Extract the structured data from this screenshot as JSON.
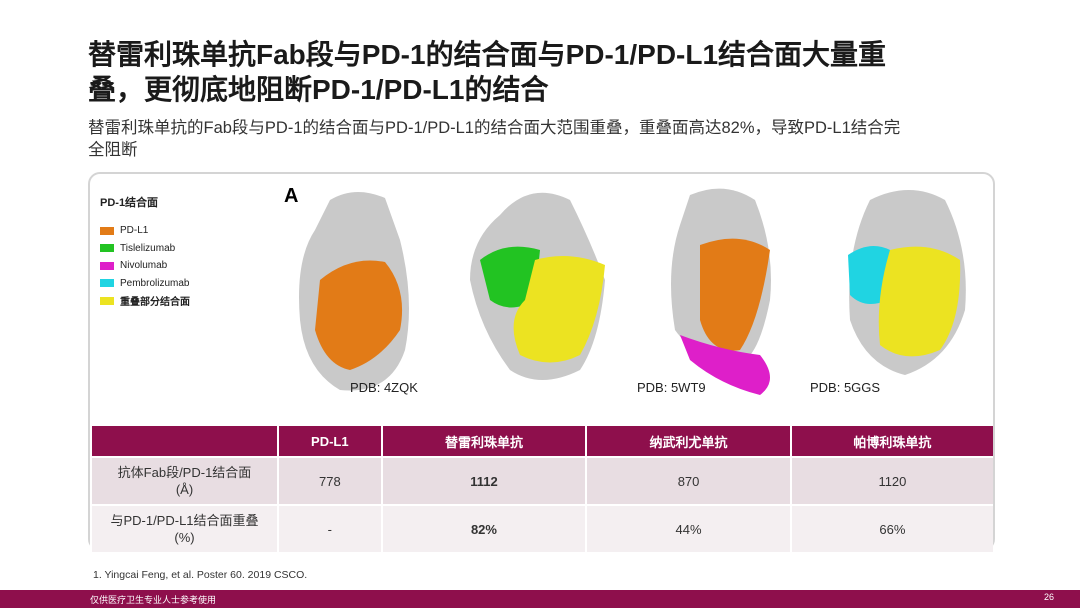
{
  "header": {
    "title": [
      "替雷利珠单抗Fab段与PD-1的结合面与PD-1/PD-L1结合面大量重",
      "叠，更彻底地阻断PD-1/PD-L1的结合"
    ],
    "subtitle": [
      "替雷利珠单抗的Fab段与PD-1的结合面与PD-1/PD-L1的结合面大范围重叠，重叠面高达82%，导致PD-L1结合完",
      "全阻断"
    ]
  },
  "figure": {
    "panel": "A",
    "legend": {
      "title": "PD-1结合面",
      "items": [
        {
          "label": "PD-L1",
          "color": "#e27b17"
        },
        {
          "label": "Tislelizumab",
          "color": "#22c322"
        },
        {
          "label": "Nivolumab",
          "color": "#de1fc9"
        },
        {
          "label": "Pembrolizumab",
          "color": "#20d4e2"
        },
        {
          "label": "重叠部分结合面",
          "color": "#ece321"
        }
      ]
    },
    "structures": [
      "PDB: 4ZQK",
      "PDB: 5WT9",
      "PDB: 5GGS"
    ]
  },
  "table": {
    "columns": [
      "PD-L1",
      "替雷利珠单抗",
      "纳武利尤单抗",
      "帕博利珠单抗"
    ],
    "rows": [
      {
        "label": [
          "抗体Fab段/PD-1结合面",
          "(Å)"
        ],
        "cells": [
          "778",
          "1112",
          "870",
          "1120"
        ]
      },
      {
        "label": [
          "与PD-1/PD-L1结合面重叠",
          "(%)"
        ],
        "cells": [
          "-",
          "82%",
          "44%",
          "66%"
        ]
      }
    ]
  },
  "footnote": "1.   Yingcai Feng, et al. Poster 60. 2019 CSCO.",
  "footer": {
    "disclaimer": "仅供医疗卫生专业人士参考使用",
    "page": "26"
  }
}
